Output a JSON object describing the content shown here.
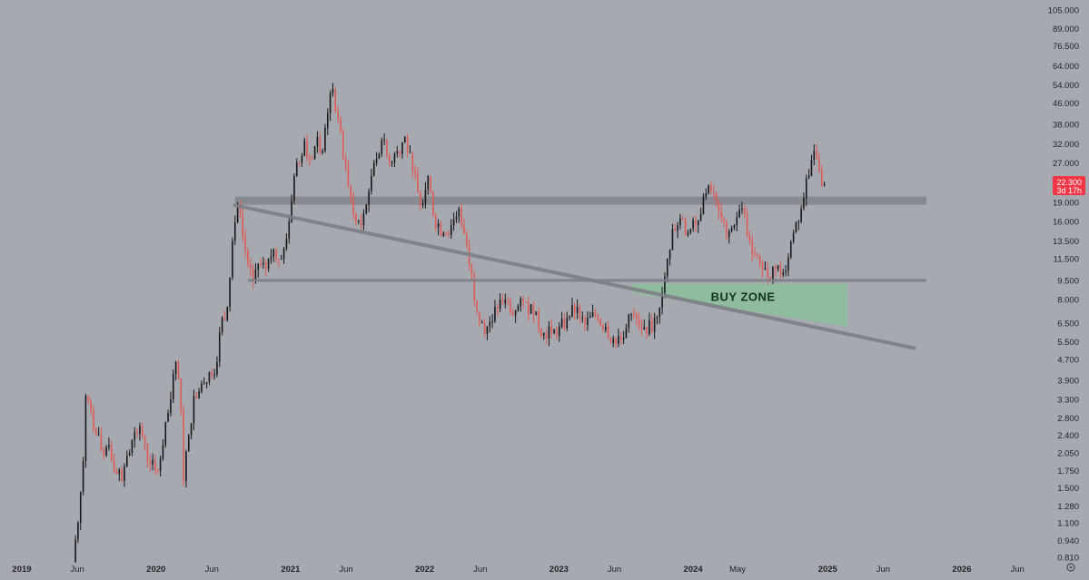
{
  "chart_data": {
    "type": "candlestick",
    "scale": "log",
    "y_ticks": [
      "105.000",
      "89.000",
      "76.500",
      "64.000",
      "54.000",
      "46.000",
      "38.000",
      "32.000",
      "27.000",
      "22.300",
      "19.000",
      "16.000",
      "13.500",
      "11.500",
      "9.500",
      "8.000",
      "6.500",
      "5.500",
      "4.700",
      "3.900",
      "3.300",
      "2.800",
      "2.400",
      "2.050",
      "1.750",
      "1.500",
      "1.280",
      "1.100",
      "0.940",
      "0.810"
    ],
    "x_ticks": [
      {
        "label": "2019",
        "date": "2019-01-01",
        "major": true
      },
      {
        "label": "Jun",
        "date": "2019-06-01",
        "major": false
      },
      {
        "label": "2020",
        "date": "2020-01-01",
        "major": true
      },
      {
        "label": "Jun",
        "date": "2020-06-01",
        "major": false
      },
      {
        "label": "2021",
        "date": "2021-01-01",
        "major": true
      },
      {
        "label": "Jun",
        "date": "2021-06-01",
        "major": false
      },
      {
        "label": "2022",
        "date": "2022-01-01",
        "major": true
      },
      {
        "label": "Jun",
        "date": "2022-06-01",
        "major": false
      },
      {
        "label": "2023",
        "date": "2023-01-01",
        "major": true
      },
      {
        "label": "Jun",
        "date": "2023-06-01",
        "major": false
      },
      {
        "label": "2024",
        "date": "2024-01-01",
        "major": true
      },
      {
        "label": "May",
        "date": "2024-05-01",
        "major": false
      },
      {
        "label": "2025",
        "date": "2025-01-01",
        "major": true
      },
      {
        "label": "Jun",
        "date": "2025-06-01",
        "major": false
      },
      {
        "label": "2026",
        "date": "2026-01-01",
        "major": true
      },
      {
        "label": "Jun",
        "date": "2026-06-01",
        "major": false
      }
    ],
    "current_price": {
      "value": 22.3,
      "label": "22.300",
      "countdown": "3d 17h",
      "color": "#f23645"
    },
    "colors": {
      "up": "#17181c",
      "down": "#e05a55",
      "background": "#a7a9b0"
    },
    "close_path": [
      [
        "2019-05-20",
        0.82
      ],
      [
        "2019-06-03",
        1.1
      ],
      [
        "2019-06-17",
        1.9
      ],
      [
        "2019-06-24",
        3.4
      ],
      [
        "2019-07-08",
        3.0
      ],
      [
        "2019-07-22",
        2.4
      ],
      [
        "2019-08-12",
        2.0
      ],
      [
        "2019-08-26",
        2.2
      ],
      [
        "2019-09-16",
        1.7
      ],
      [
        "2019-09-30",
        1.6
      ],
      [
        "2019-10-14",
        2.0
      ],
      [
        "2019-10-28",
        2.3
      ],
      [
        "2019-11-18",
        2.6
      ],
      [
        "2019-12-02",
        2.2
      ],
      [
        "2019-12-16",
        1.85
      ],
      [
        "2019-12-30",
        1.75
      ],
      [
        "2020-01-20",
        2.2
      ],
      [
        "2020-02-10",
        3.3
      ],
      [
        "2020-02-24",
        4.6
      ],
      [
        "2020-03-09",
        3.0
      ],
      [
        "2020-03-16",
        1.6
      ],
      [
        "2020-03-30",
        2.4
      ],
      [
        "2020-04-13",
        3.4
      ],
      [
        "2020-05-04",
        3.8
      ],
      [
        "2020-05-25",
        4.2
      ],
      [
        "2020-06-15",
        4.6
      ],
      [
        "2020-06-29",
        6.8
      ],
      [
        "2020-07-13",
        7.5
      ],
      [
        "2020-07-27",
        13.5
      ],
      [
        "2020-08-10",
        18.5
      ],
      [
        "2020-08-24",
        14.0
      ],
      [
        "2020-09-07",
        11.0
      ],
      [
        "2020-09-21",
        9.5
      ],
      [
        "2020-10-05",
        11.0
      ],
      [
        "2020-10-26",
        10.5
      ],
      [
        "2020-11-16",
        12.5
      ],
      [
        "2020-12-07",
        11.5
      ],
      [
        "2020-12-28",
        16.0
      ],
      [
        "2021-01-11",
        24.0
      ],
      [
        "2021-01-25",
        27.0
      ],
      [
        "2021-02-08",
        33.0
      ],
      [
        "2021-02-22",
        28.0
      ],
      [
        "2021-03-15",
        34.0
      ],
      [
        "2021-03-29",
        30.0
      ],
      [
        "2021-04-12",
        42.0
      ],
      [
        "2021-04-26",
        52.0
      ],
      [
        "2021-05-10",
        40.0
      ],
      [
        "2021-05-24",
        28.0
      ],
      [
        "2021-06-07",
        22.0
      ],
      [
        "2021-06-21",
        17.0
      ],
      [
        "2021-07-12",
        15.5
      ],
      [
        "2021-08-02",
        21.0
      ],
      [
        "2021-08-23",
        28.0
      ],
      [
        "2021-09-06",
        33.0
      ],
      [
        "2021-09-27",
        27.0
      ],
      [
        "2021-10-18",
        30.0
      ],
      [
        "2021-11-08",
        34.0
      ],
      [
        "2021-11-29",
        25.0
      ],
      [
        "2021-12-20",
        18.5
      ],
      [
        "2022-01-10",
        24.0
      ],
      [
        "2022-01-24",
        17.0
      ],
      [
        "2022-02-21",
        14.5
      ],
      [
        "2022-03-14",
        15.5
      ],
      [
        "2022-04-04",
        18.0
      ],
      [
        "2022-04-25",
        13.0
      ],
      [
        "2022-05-09",
        10.0
      ],
      [
        "2022-05-23",
        7.2
      ],
      [
        "2022-06-13",
        5.9
      ],
      [
        "2022-07-11",
        7.5
      ],
      [
        "2022-08-08",
        8.0
      ],
      [
        "2022-09-05",
        7.3
      ],
      [
        "2022-10-03",
        7.8
      ],
      [
        "2022-10-31",
        7.2
      ],
      [
        "2022-11-14",
        5.8
      ],
      [
        "2022-12-05",
        6.3
      ],
      [
        "2022-12-26",
        5.8
      ],
      [
        "2023-01-23",
        6.8
      ],
      [
        "2023-02-20",
        7.5
      ],
      [
        "2023-03-13",
        6.4
      ],
      [
        "2023-04-10",
        7.0
      ],
      [
        "2023-05-08",
        6.3
      ],
      [
        "2023-06-05",
        5.4
      ],
      [
        "2023-06-19",
        5.6
      ],
      [
        "2023-07-10",
        7.0
      ],
      [
        "2023-08-07",
        6.4
      ],
      [
        "2023-08-28",
        5.9
      ],
      [
        "2023-09-18",
        6.8
      ],
      [
        "2023-10-09",
        8.5
      ],
      [
        "2023-10-23",
        11.5
      ],
      [
        "2023-11-06",
        15.0
      ],
      [
        "2023-11-27",
        16.5
      ],
      [
        "2023-12-18",
        14.5
      ],
      [
        "2024-01-08",
        15.5
      ],
      [
        "2024-01-29",
        20.0
      ],
      [
        "2024-02-19",
        21.0
      ],
      [
        "2024-03-11",
        17.5
      ],
      [
        "2024-04-01",
        14.0
      ],
      [
        "2024-04-22",
        15.5
      ],
      [
        "2024-05-13",
        18.0
      ],
      [
        "2024-06-03",
        13.5
      ],
      [
        "2024-07-01",
        11.0
      ],
      [
        "2024-07-22",
        9.8
      ],
      [
        "2024-08-12",
        10.5
      ],
      [
        "2024-09-02",
        10.2
      ],
      [
        "2024-09-30",
        14.5
      ],
      [
        "2024-10-21",
        18.0
      ],
      [
        "2024-11-11",
        24.0
      ],
      [
        "2024-11-25",
        30.0
      ],
      [
        "2024-12-09",
        25.0
      ],
      [
        "2024-12-23",
        22.3
      ]
    ],
    "resistance_zone": {
      "from": 18.6,
      "to": 20.0,
      "start": "2020-08-03"
    },
    "support_line": {
      "value": 9.5,
      "start": "2020-09-07"
    },
    "trendline": {
      "from": [
        "2020-08-03",
        18.5
      ],
      "to": [
        "2025-08-25",
        5.2
      ]
    },
    "buy_zone": {
      "label": "BUY ZONE",
      "start": "2023-07-17",
      "end": "2025-02-24",
      "top": 9.2,
      "bottom_start": 8.5,
      "bottom_end": 6.3
    },
    "grid": false,
    "legend": "none"
  }
}
